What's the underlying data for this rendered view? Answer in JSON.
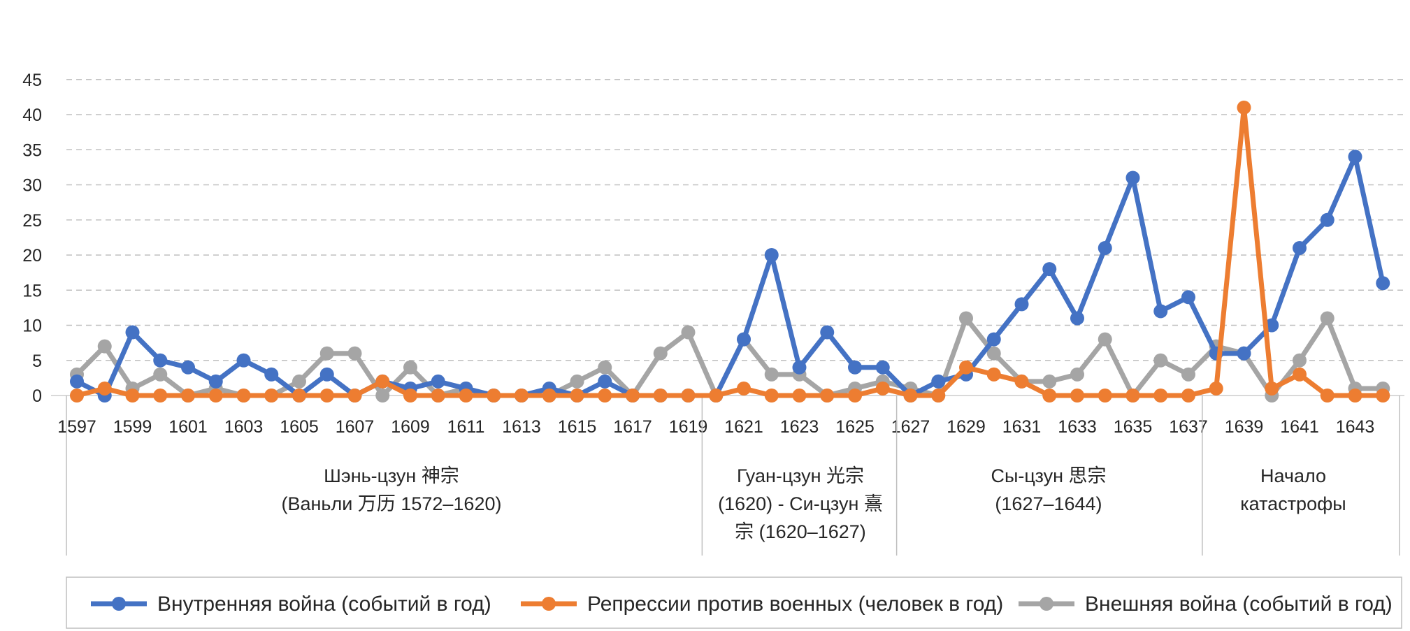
{
  "chart_data": {
    "type": "line",
    "x": [
      1597,
      1598,
      1599,
      1600,
      1601,
      1602,
      1603,
      1604,
      1605,
      1606,
      1607,
      1608,
      1609,
      1610,
      1611,
      1612,
      1613,
      1614,
      1615,
      1616,
      1617,
      1618,
      1619,
      1620,
      1621,
      1622,
      1623,
      1624,
      1625,
      1626,
      1627,
      1628,
      1629,
      1630,
      1631,
      1632,
      1633,
      1634,
      1635,
      1636,
      1637,
      1638,
      1639,
      1640,
      1641,
      1642,
      1643,
      1644
    ],
    "x_tick_labels": [
      "1597",
      "1599",
      "1601",
      "1603",
      "1605",
      "1607",
      "1609",
      "1611",
      "1613",
      "1615",
      "1617",
      "1619",
      "1621",
      "1623",
      "1625",
      "1627",
      "1629",
      "1631",
      "1633",
      "1635",
      "1637",
      "1639",
      "1641",
      "1643"
    ],
    "ylim": [
      0,
      45
    ],
    "y_ticks": [
      "0",
      "5",
      "10",
      "15",
      "20",
      "25",
      "30",
      "35",
      "40",
      "45"
    ],
    "grid": "horizontal dashed",
    "legend_position": "bottom",
    "series": [
      {
        "name": "Внутренняя война  (событий в год)",
        "color": "#4472c4",
        "values": [
          2,
          0,
          9,
          5,
          4,
          2,
          5,
          3,
          0,
          3,
          0,
          2,
          1,
          2,
          1,
          0,
          0,
          1,
          0,
          2,
          0,
          0,
          0,
          0,
          8,
          20,
          4,
          9,
          4,
          4,
          0,
          2,
          3,
          8,
          13,
          18,
          11,
          21,
          31,
          12,
          14,
          6,
          6,
          10,
          21,
          25,
          34,
          16
        ]
      },
      {
        "name": "Репрессии против военных (человек в год)",
        "color": "#ed7d31",
        "values": [
          0,
          1,
          0,
          0,
          0,
          0,
          0,
          0,
          0,
          0,
          0,
          2,
          0,
          0,
          0,
          0,
          0,
          0,
          0,
          0,
          0,
          0,
          0,
          0,
          1,
          0,
          0,
          0,
          0,
          1,
          0,
          0,
          4,
          3,
          2,
          0,
          0,
          0,
          0,
          0,
          0,
          1,
          41,
          1,
          3,
          0,
          0,
          0
        ]
      },
      {
        "name": "Внешняя война (событий в год)",
        "color": "#a5a5a5",
        "values": [
          3,
          7,
          1,
          3,
          0,
          1,
          0,
          0,
          2,
          6,
          6,
          0,
          4,
          0,
          1,
          0,
          0,
          0,
          2,
          4,
          0,
          6,
          9,
          0,
          8,
          3,
          3,
          0,
          1,
          2,
          1,
          0,
          11,
          6,
          2,
          2,
          3,
          8,
          0,
          5,
          3,
          7,
          6,
          0,
          5,
          11,
          1,
          1
        ]
      }
    ],
    "eras": [
      {
        "line1": "Шэнь-цзун 神宗",
        "line2": "(Ваньли 万历 1572–1620)",
        "line3": ""
      },
      {
        "line1": "Гуан-цзун 光宗",
        "line2": "(1620) - Си-цзун 熹",
        "line3": "宗 (1620–1627)"
      },
      {
        "line1": "Сы-цзун 思宗",
        "line2": "(1627–1644)",
        "line3": ""
      },
      {
        "line1": "Начало",
        "line2": "катастрофы",
        "line3": ""
      }
    ]
  }
}
